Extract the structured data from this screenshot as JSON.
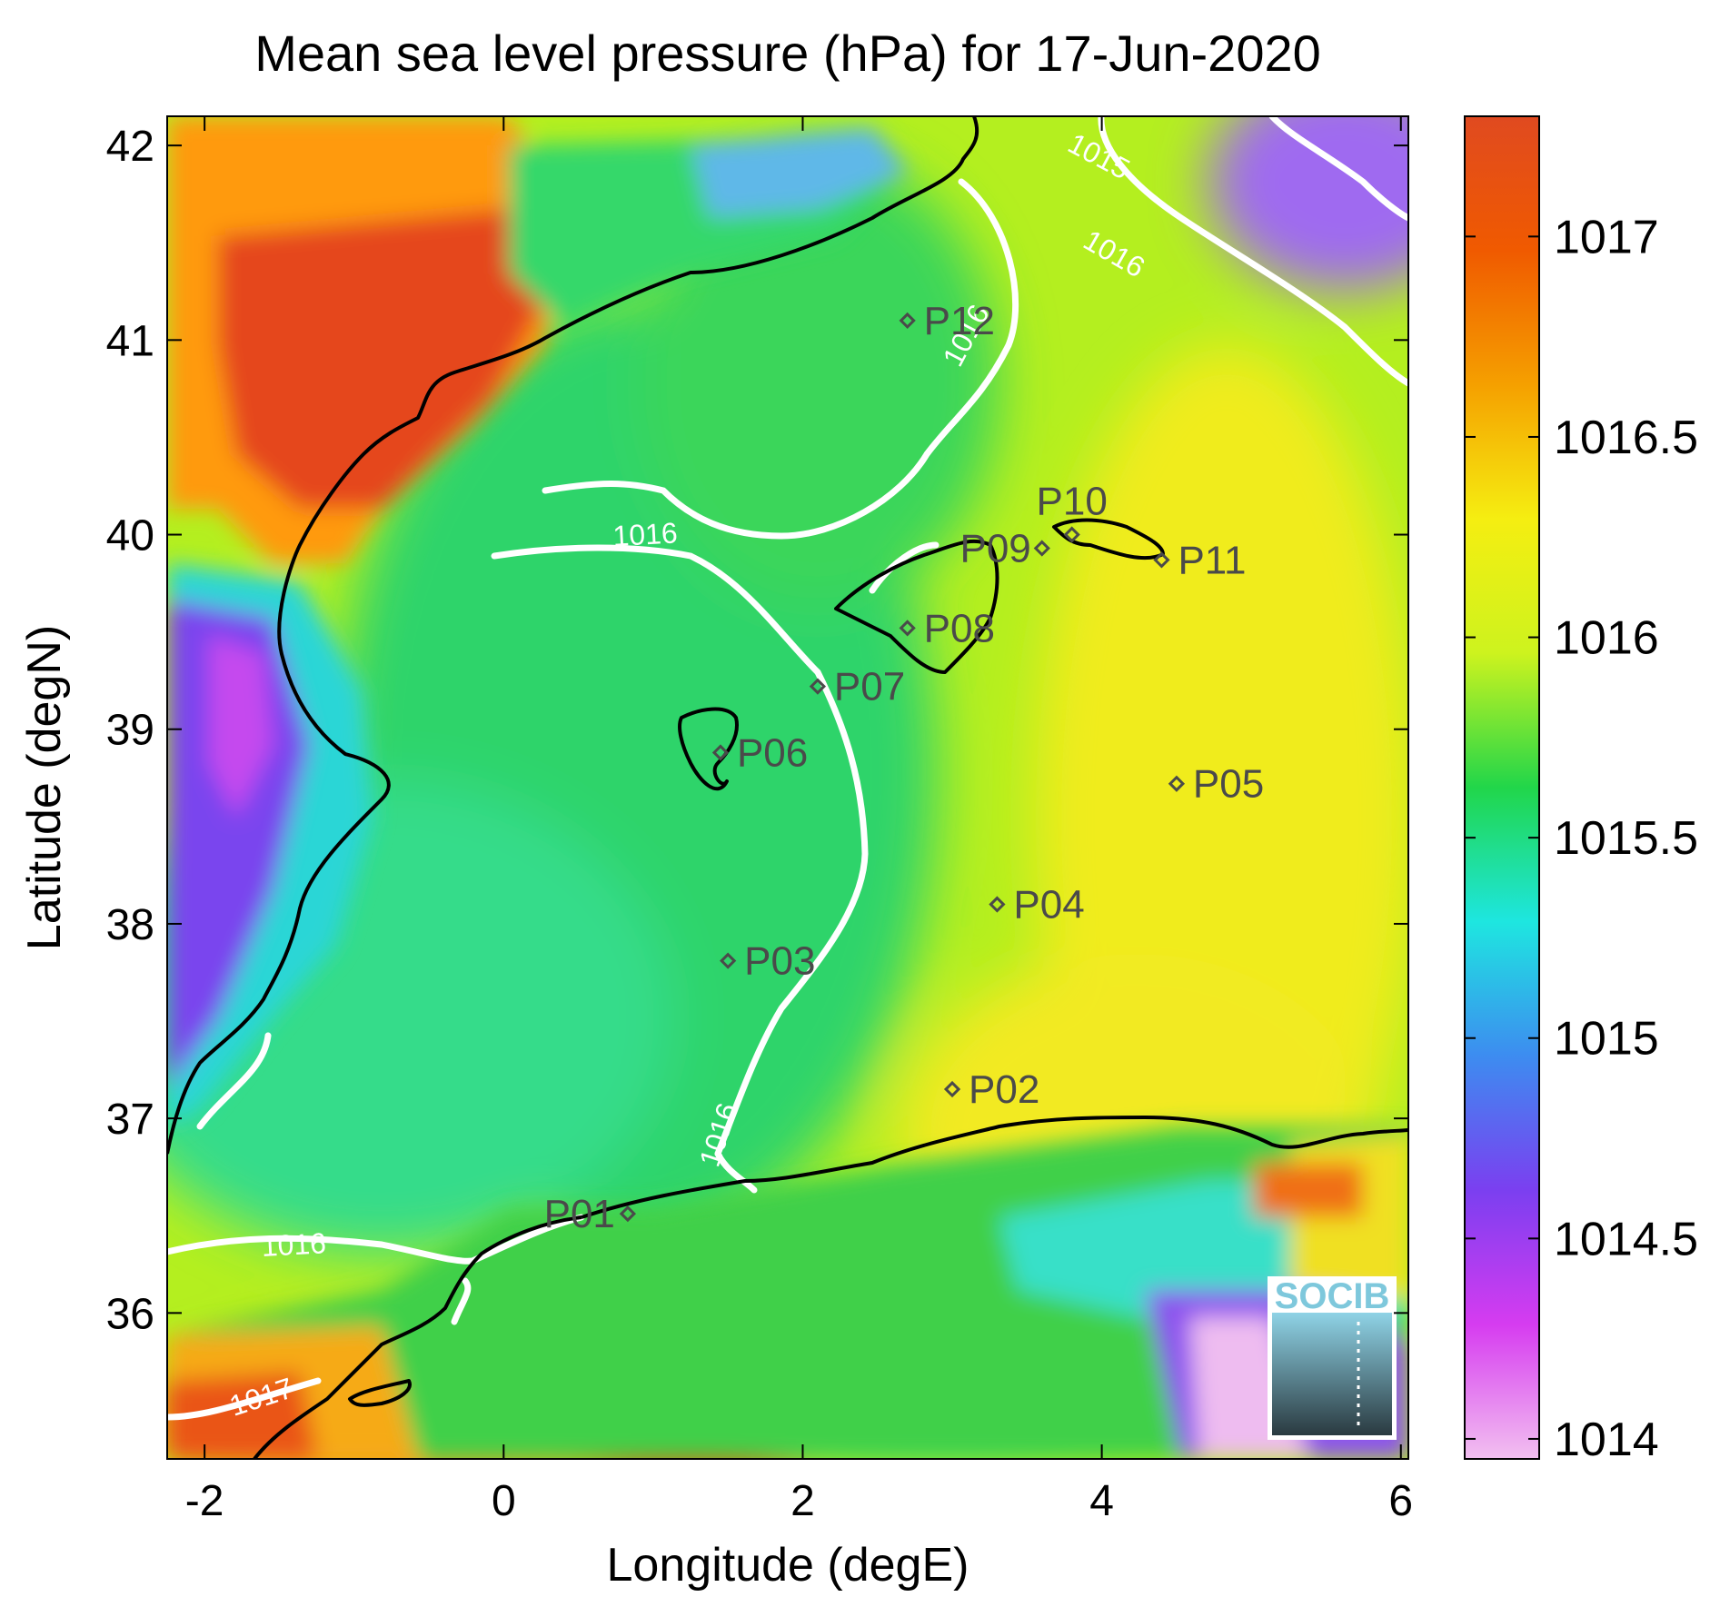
{
  "title": "Mean sea level pressure (hPa) for 17-Jun-2020",
  "xlabel": "Longitude (degE)",
  "ylabel": "Latitude (degN)",
  "xlim": [
    -2.25,
    6.05
  ],
  "ylim": [
    35.25,
    42.15
  ],
  "xticks": [
    {
      "value": -2,
      "label": "-2"
    },
    {
      "value": 0,
      "label": "0"
    },
    {
      "value": 2,
      "label": "2"
    },
    {
      "value": 4,
      "label": "4"
    },
    {
      "value": 6,
      "label": "6"
    }
  ],
  "yticks": [
    {
      "value": 36,
      "label": "36"
    },
    {
      "value": 37,
      "label": "37"
    },
    {
      "value": 38,
      "label": "38"
    },
    {
      "value": 39,
      "label": "39"
    },
    {
      "value": 40,
      "label": "40"
    },
    {
      "value": 41,
      "label": "41"
    },
    {
      "value": 42,
      "label": "42"
    }
  ],
  "colorbar": {
    "range": [
      1013.95,
      1017.3
    ],
    "ticks": [
      {
        "value": 1014,
        "label": "1014"
      },
      {
        "value": 1014.5,
        "label": "1014.5"
      },
      {
        "value": 1015,
        "label": "1015"
      },
      {
        "value": 1015.5,
        "label": "1015.5"
      },
      {
        "value": 1016,
        "label": "1016"
      },
      {
        "value": 1016.5,
        "label": "1016.5"
      },
      {
        "value": 1017,
        "label": "1017"
      }
    ],
    "stops": [
      "#f2c0f0",
      "#d63cf0",
      "#7b3ff0",
      "#3d8cf0",
      "#1ee6e0",
      "#21d64a",
      "#cdf31e",
      "#f5ee11",
      "#f5a000",
      "#f05a00",
      "#e04a20"
    ]
  },
  "stations": [
    {
      "name": "P01",
      "lon": 0.83,
      "lat": 36.51
    },
    {
      "name": "P02",
      "lon": 3.0,
      "lat": 37.15
    },
    {
      "name": "P03",
      "lon": 1.5,
      "lat": 37.81
    },
    {
      "name": "P04",
      "lon": 3.3,
      "lat": 38.1
    },
    {
      "name": "P05",
      "lon": 4.5,
      "lat": 38.72
    },
    {
      "name": "P06",
      "lon": 1.45,
      "lat": 38.88
    },
    {
      "name": "P07",
      "lon": 2.1,
      "lat": 39.22
    },
    {
      "name": "P08",
      "lon": 2.7,
      "lat": 39.52
    },
    {
      "name": "P09",
      "lon": 3.6,
      "lat": 39.93
    },
    {
      "name": "P10",
      "lon": 3.8,
      "lat": 40.0
    },
    {
      "name": "P11",
      "lon": 4.4,
      "lat": 39.87
    },
    {
      "name": "P12",
      "lon": 2.7,
      "lat": 41.1
    }
  ],
  "contour_labels": [
    {
      "text": "1016",
      "lon": 0.95,
      "lat": 39.95,
      "angle": -3
    },
    {
      "text": "1016",
      "lon": 3.15,
      "lat": 41.0,
      "angle": -62
    },
    {
      "text": "1016",
      "lon": 4.05,
      "lat": 41.4,
      "angle": 30
    },
    {
      "text": "1015",
      "lon": 3.95,
      "lat": 41.9,
      "angle": 28
    },
    {
      "text": "1016",
      "lon": 1.5,
      "lat": 36.9,
      "angle": -72
    },
    {
      "text": "1016",
      "lon": -1.4,
      "lat": 36.3,
      "angle": -3
    },
    {
      "text": "1017",
      "lon": -1.6,
      "lat": 35.52,
      "angle": -18
    }
  ],
  "logo": {
    "text": "SOCIB"
  }
}
